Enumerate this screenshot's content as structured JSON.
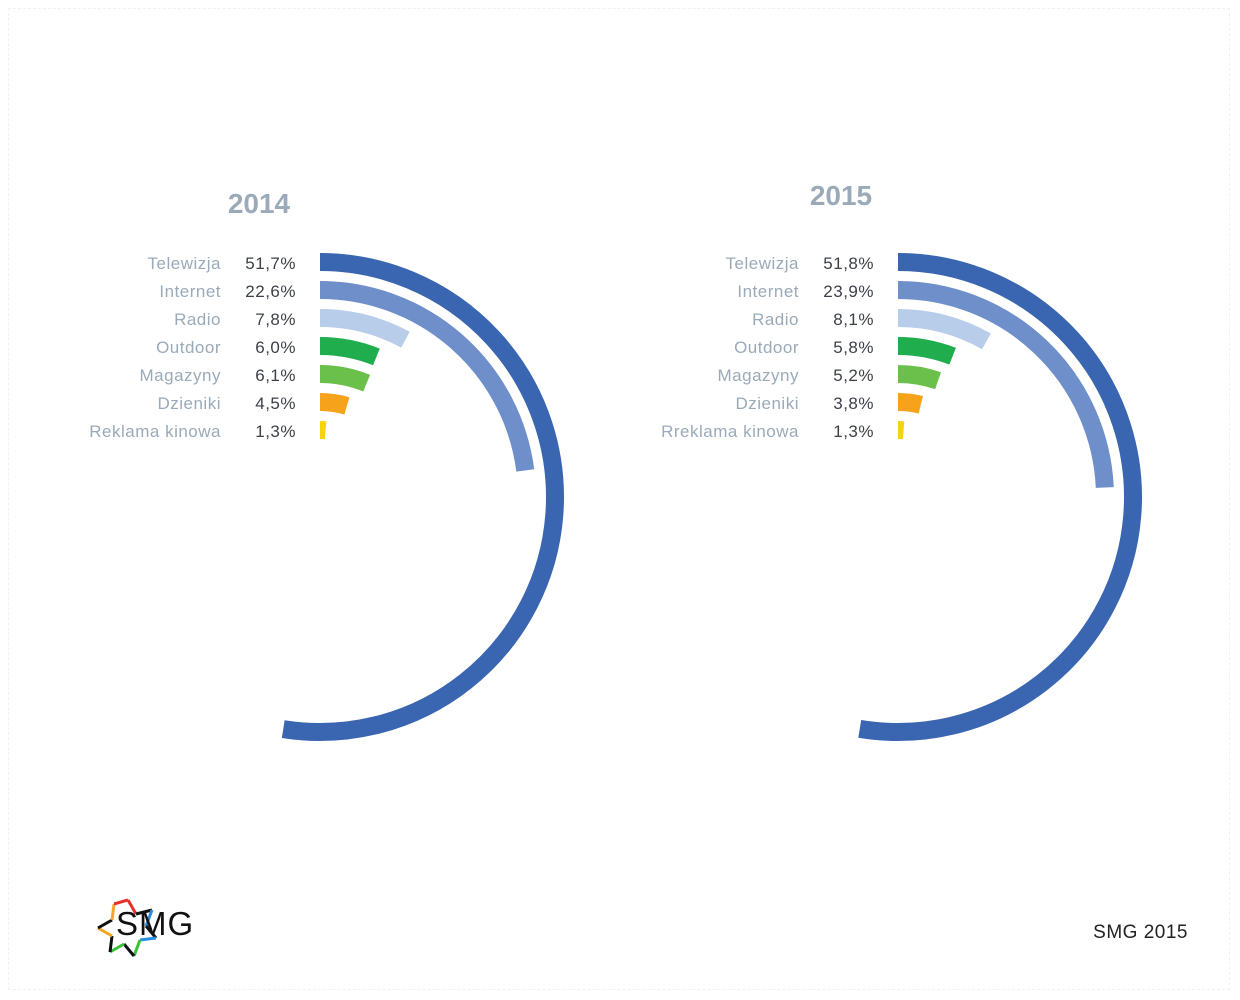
{
  "colors": {
    "telewizja": "#3a65b0",
    "internet": "#6f8fcb",
    "radio": "#b8cdea",
    "outdoor": "#20ad4e",
    "magazyny": "#6ac04a",
    "dzienniki": "#f7a21b",
    "reklama_kinowa": "#f7d20f",
    "title": "#9aaab8"
  },
  "chart_data": [
    {
      "type": "radial-bar",
      "title": "2014",
      "unit": "%",
      "categories": [
        "Telewizja",
        "Internet",
        "Radio",
        "Outdoor",
        "Magazyny",
        "Dzieniki",
        "Reklama kinowa"
      ],
      "value_labels": [
        "51,7%",
        "22,6%",
        "7,8%",
        "6,0%",
        "6,1%",
        "4,5%",
        "1,3%"
      ],
      "values": [
        51.7,
        22.6,
        7.8,
        6.0,
        6.1,
        4.5,
        1.3
      ]
    },
    {
      "type": "radial-bar",
      "title": "2015",
      "unit": "%",
      "categories": [
        "Telewizja",
        "Internet",
        "Radio",
        "Outdoor",
        "Magazyny",
        "Dzieniki",
        "Rreklama kinowa"
      ],
      "value_labels": [
        "51,8%",
        "23,9%",
        "8,1%",
        "5,8%",
        "5,2%",
        "3,8%",
        "1,3%"
      ],
      "values": [
        51.8,
        23.9,
        8.1,
        5.8,
        5.2,
        3.8,
        1.3
      ]
    }
  ],
  "footer": {
    "logo_text": "SMG",
    "source": "SMG 2015"
  }
}
